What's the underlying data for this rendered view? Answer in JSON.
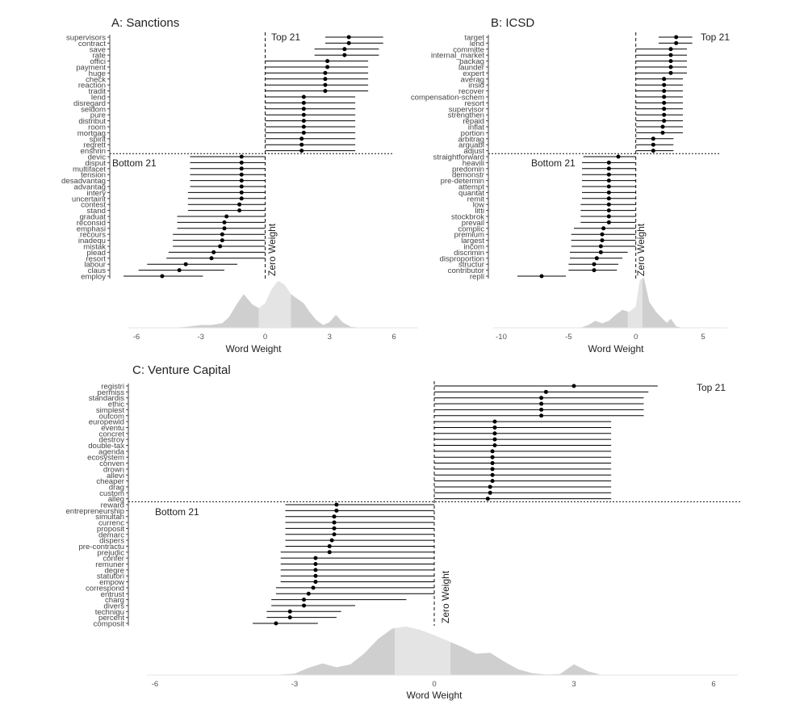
{
  "chart_data": [
    {
      "type": "scatter",
      "title": "A: Sanctions",
      "xlabel": "Word Weight",
      "xlim": [
        -6,
        6
      ],
      "xticks": [
        -6,
        -3,
        0,
        3,
        6
      ],
      "zero_label": "Zero Weight",
      "top_label": "Top 21",
      "bottom_label": "Bottom 21",
      "words": [
        "supervisors",
        "contract",
        "save",
        "rate",
        "offici",
        "payment",
        "huge",
        "check",
        "reaction",
        "tradit",
        "lend",
        "disregard",
        "seldom",
        "pure",
        "distribut",
        "room",
        "mortgag",
        "spirit",
        "regrett",
        "enshrin",
        "devic",
        "disput",
        "multifacet",
        "tension",
        "desadvantag",
        "advantag",
        "intery",
        "uncertaint",
        "contest",
        "stand",
        "graduat",
        "reconsid",
        "emphasi",
        "recours",
        "inadequ",
        "mistak",
        "plead",
        "resort",
        "labour",
        "claus",
        "employ"
      ],
      "est": [
        3.9,
        3.9,
        3.7,
        3.7,
        2.9,
        2.9,
        2.8,
        2.8,
        2.8,
        2.8,
        1.8,
        1.8,
        1.8,
        1.8,
        1.8,
        1.8,
        1.8,
        1.7,
        1.7,
        1.7,
        -1.1,
        -1.1,
        -1.1,
        -1.1,
        -1.1,
        -1.1,
        -1.1,
        -1.1,
        -1.2,
        -1.2,
        -1.8,
        -1.9,
        -1.9,
        -2.0,
        -2.0,
        -2.1,
        -2.4,
        -2.5,
        -3.7,
        -4.0,
        -4.8
      ],
      "lo": [
        2.8,
        2.8,
        2.3,
        2.3,
        0,
        0,
        0,
        0,
        0,
        0,
        0,
        0,
        0,
        0,
        0,
        0,
        0,
        0,
        0,
        0,
        -3.5,
        -3.5,
        -3.5,
        -3.5,
        -3.5,
        -3.5,
        -3.6,
        -3.6,
        -3.6,
        -3.6,
        -4.1,
        -4.1,
        -4.1,
        -4.3,
        -4.3,
        -4.3,
        -4.5,
        -4.6,
        -5.5,
        -5.9,
        -6.6
      ],
      "hi": [
        5.5,
        5.5,
        5.3,
        5.3,
        4.8,
        4.8,
        4.8,
        4.8,
        4.8,
        4.8,
        4.2,
        4.2,
        4.2,
        4.2,
        4.2,
        4.2,
        4.2,
        4.2,
        4.2,
        4.2,
        0,
        0,
        0,
        0,
        0,
        0,
        0,
        0,
        0,
        0,
        0,
        0,
        0,
        0,
        0,
        0,
        0,
        0,
        -1.3,
        -1.9,
        -2.9
      ],
      "density_x": [
        -6,
        -5,
        -4,
        -3.5,
        -3,
        -2.5,
        -2,
        -1.7,
        -1.3,
        -1,
        -0.6,
        -0.3,
        0,
        0.3,
        0.6,
        0.9,
        1.2,
        1.5,
        1.8,
        2.1,
        2.4,
        2.7,
        3.0,
        3.3,
        3.6,
        4,
        4.5,
        6
      ],
      "density_y": [
        0,
        0,
        0.01,
        0.03,
        0.06,
        0.06,
        0.1,
        0.22,
        0.52,
        0.72,
        0.5,
        0.42,
        0.52,
        0.82,
        1.0,
        0.92,
        0.72,
        0.62,
        0.52,
        0.32,
        0.16,
        0.06,
        0.12,
        0.28,
        0.12,
        0.02,
        0,
        0
      ]
    },
    {
      "type": "scatter",
      "title": "B: ICSD",
      "xlabel": "Word Weight",
      "xlim": [
        -10,
        5
      ],
      "xticks": [
        -10,
        -5,
        0,
        5
      ],
      "zero_label": "Zero Weight",
      "top_label": "Top 21",
      "bottom_label": "Bottom 21",
      "words": [
        "target",
        "lend",
        "committe",
        "internal_market",
        "packag",
        "launder",
        "expert",
        "averag",
        "insid",
        "recover",
        "compensation-schem",
        "resort",
        "supervisor",
        "strengthen",
        "repaid",
        "inflat",
        "portion",
        "arbitrag",
        "arguabl",
        "adjust",
        "straightforward",
        "heavili",
        "predomin",
        "demonstr",
        "pre-determin",
        "attempt",
        "quantat",
        "remit",
        "low",
        "litti",
        "stockbrok",
        "prevail",
        "complic",
        "premium",
        "largest",
        "incom",
        "discrimin",
        "disproportion",
        "structur",
        "contributor",
        "repli"
      ],
      "est": [
        3.0,
        3.0,
        2.6,
        2.6,
        2.6,
        2.6,
        2.6,
        2.1,
        2.1,
        2.1,
        2.1,
        2.1,
        2.1,
        2.1,
        2.1,
        2.0,
        2.0,
        1.3,
        1.3,
        1.3,
        -1.3,
        -2.0,
        -2.0,
        -2.0,
        -2.0,
        -2.0,
        -2.0,
        -2.0,
        -2.0,
        -2.0,
        -2.0,
        -2.0,
        -2.4,
        -2.5,
        -2.5,
        -2.6,
        -2.6,
        -2.9,
        -3.1,
        -3.1,
        -7.0
      ],
      "lo": [
        1.7,
        1.7,
        0,
        0,
        0,
        0,
        0,
        0,
        0,
        0,
        0,
        0,
        0,
        0,
        0,
        0,
        0,
        0,
        0,
        0,
        -3.9,
        -4.0,
        -4.0,
        -4.0,
        -4.0,
        -4.0,
        -4.0,
        -4.0,
        -4.1,
        -4.1,
        -4.1,
        -4.1,
        -4.6,
        -4.8,
        -4.8,
        -4.8,
        -4.9,
        -4.9,
        -5.0,
        -5.0,
        -8.8
      ],
      "hi": [
        4.2,
        4.2,
        3.8,
        3.8,
        3.8,
        3.8,
        3.8,
        3.5,
        3.5,
        3.5,
        3.5,
        3.5,
        3.5,
        3.5,
        3.5,
        3.5,
        3.5,
        2.8,
        2.8,
        2.8,
        0,
        0,
        0,
        0,
        0,
        0,
        0,
        0,
        0,
        0,
        0,
        0,
        0,
        0,
        0,
        0,
        -0.6,
        -1.0,
        -1.3,
        -1.4,
        -5.2
      ],
      "density_x": [
        -10,
        -6,
        -4,
        -3.5,
        -3,
        -2.5,
        -2,
        -1.5,
        -1,
        -0.5,
        0,
        0.3,
        0.6,
        1,
        1.5,
        2,
        2.3,
        2.6,
        3,
        3.5,
        5
      ],
      "density_y": [
        0,
        0,
        0.01,
        0.06,
        0.14,
        0.09,
        0.14,
        0.26,
        0.36,
        0.32,
        0.42,
        0.95,
        1.0,
        0.52,
        0.32,
        0.18,
        0.1,
        0.18,
        0.03,
        0,
        0
      ]
    },
    {
      "type": "scatter",
      "title": "C: Venture Capital",
      "xlabel": "Word Weight",
      "xlim": [
        -6,
        6
      ],
      "xticks": [
        -6,
        -3,
        0,
        3,
        6
      ],
      "zero_label": "Zero Weight",
      "top_label": "Top 21",
      "bottom_label": "Bottom 21",
      "words": [
        "registri",
        "permiss",
        "standardis",
        "ethic",
        "simplest",
        "outcom",
        "europewid",
        "eventu",
        "concret",
        "destroy",
        "double-tax",
        "agenda",
        "ecosystem",
        "conven",
        "drown",
        "allevi",
        "cheaper",
        "drag",
        "custom",
        "alleg",
        "reward",
        "entrepreneurship",
        "simultan",
        "currenc",
        "proposit",
        "demarc",
        "dispers",
        "pre-contractu",
        "prejudic",
        "confer",
        "remuner",
        "degre",
        "statutori",
        "empow",
        "correspond",
        "entrust",
        "charg",
        "divers",
        "technigu",
        "percent",
        "composit"
      ],
      "est": [
        3.0,
        2.4,
        2.3,
        2.3,
        2.3,
        2.3,
        1.3,
        1.3,
        1.3,
        1.3,
        1.3,
        1.25,
        1.25,
        1.25,
        1.25,
        1.25,
        1.25,
        1.2,
        1.2,
        1.15,
        -2.1,
        -2.1,
        -2.15,
        -2.15,
        -2.15,
        -2.15,
        -2.2,
        -2.25,
        -2.25,
        -2.55,
        -2.55,
        -2.55,
        -2.55,
        -2.55,
        -2.6,
        -2.7,
        -2.8,
        -2.8,
        -3.1,
        -3.1,
        -3.4
      ],
      "lo": [
        0,
        0,
        0,
        0,
        0,
        0,
        0,
        0,
        0,
        0,
        0,
        0,
        0,
        0,
        0,
        0,
        0,
        0,
        0,
        0,
        -3.2,
        -3.2,
        -3.2,
        -3.2,
        -3.2,
        -3.2,
        -3.2,
        -3.2,
        -3.3,
        -3.3,
        -3.3,
        -3.3,
        -3.3,
        -3.3,
        -3.4,
        -3.4,
        -3.5,
        -3.5,
        -3.6,
        -3.6,
        -3.9
      ],
      "hi": [
        4.8,
        4.6,
        4.5,
        4.5,
        4.5,
        4.5,
        3.8,
        3.8,
        3.8,
        3.8,
        3.8,
        3.8,
        3.8,
        3.8,
        3.8,
        3.8,
        3.8,
        3.8,
        3.8,
        3.8,
        0,
        0,
        0,
        0,
        0,
        0,
        0,
        0,
        0,
        0,
        0,
        0,
        0,
        0,
        0,
        0,
        -0.6,
        -1.7,
        -2.0,
        -2.1,
        -2.5
      ],
      "density_x": [
        -6,
        -3.5,
        -3,
        -2.7,
        -2.4,
        -2.1,
        -1.8,
        -1.5,
        -1.2,
        -0.9,
        -0.6,
        -0.3,
        0,
        0.3,
        0.6,
        0.9,
        1.2,
        1.5,
        1.8,
        2.1,
        2.4,
        2.7,
        3.0,
        3.3,
        3.6,
        6
      ],
      "density_y": [
        0,
        0,
        0.03,
        0.15,
        0.24,
        0.16,
        0.22,
        0.45,
        0.75,
        0.96,
        1.0,
        0.93,
        0.82,
        0.7,
        0.58,
        0.44,
        0.46,
        0.28,
        0.12,
        0.04,
        0.01,
        0.02,
        0.22,
        0.08,
        0,
        0
      ]
    }
  ]
}
